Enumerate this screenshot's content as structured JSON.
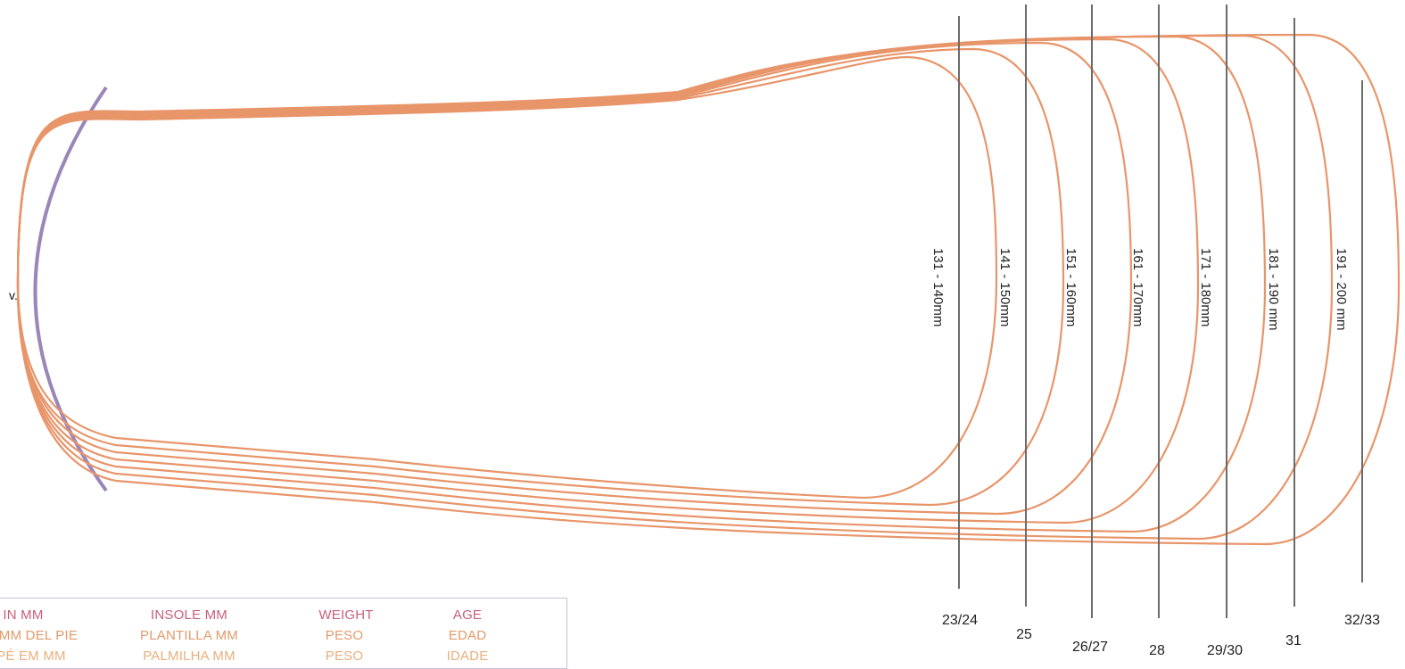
{
  "heel_marker": "v.",
  "sizes": [
    {
      "range": "131 - 140mm",
      "size": "23/24"
    },
    {
      "range": "141 - 150mm",
      "size": "25"
    },
    {
      "range": "151 - 160mm",
      "size": "26/27"
    },
    {
      "range": "161 - 170mm",
      "size": "28"
    },
    {
      "range": "171 - 180mm",
      "size": "29/30"
    },
    {
      "range": "181 - 190 mm",
      "size": "31"
    },
    {
      "range": "191 - 200 mm",
      "size": "32/33"
    }
  ],
  "legend": {
    "columns": [
      {
        "en": "IN MM",
        "es": "MM DEL PIE",
        "pt": "PÉ EM MM"
      },
      {
        "en": "INSOLE MM",
        "es": "PLANTILLA MM",
        "pt": "PALMILHA MM"
      },
      {
        "en": "WEIGHT",
        "es": "PESO",
        "pt": "PESO"
      },
      {
        "en": "AGE",
        "es": "EDAD",
        "pt": "IDADE"
      }
    ]
  },
  "colors": {
    "outline": "#e8956a",
    "heel_arc": "#9a87b8",
    "size_line": "#6b6b6b",
    "legend_border": "#c9c0dc"
  }
}
